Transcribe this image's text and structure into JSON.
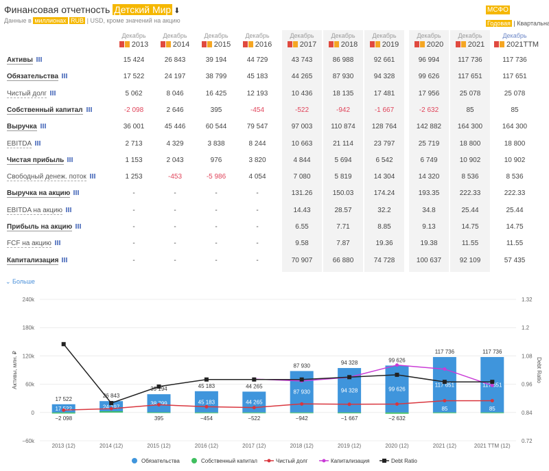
{
  "header": {
    "title_prefix": "Финансовая отчетность",
    "company": "Детский Мир",
    "download_icon": "download-icon",
    "data_in": "Данные в",
    "units": "миллионах",
    "currency_active": "RUB",
    "separator": "|",
    "currency_alt": "USD",
    "units_note": ", кроме значений на акцию",
    "standard": "МСФО",
    "period_active": "Годовая",
    "period_alt": "Квартальная"
  },
  "columns": [
    {
      "month": "Декабрь",
      "year": "2013"
    },
    {
      "month": "Декабрь",
      "year": "2014"
    },
    {
      "month": "Декабрь",
      "year": "2015"
    },
    {
      "month": "Декабрь",
      "year": "2016"
    },
    {
      "month": "Декабрь",
      "year": "2017"
    },
    {
      "month": "Декабрь",
      "year": "2018"
    },
    {
      "month": "Декабрь",
      "year": "2019"
    },
    {
      "month": "Декабрь",
      "year": "2020"
    },
    {
      "month": "Декабрь",
      "year": "2021"
    },
    {
      "month": "Декабрь",
      "year": "2021TTM"
    }
  ],
  "rows": [
    {
      "label": "Активы",
      "bold": true,
      "values": [
        "15 424",
        "26 843",
        "39 194",
        "44 729",
        "43 743",
        "86 988",
        "92 661",
        "96 994",
        "117 736",
        "117 736"
      ]
    },
    {
      "label": "Обязательства",
      "bold": true,
      "values": [
        "17 522",
        "24 197",
        "38 799",
        "45 183",
        "44 265",
        "87 930",
        "94 328",
        "99 626",
        "117 651",
        "117 651"
      ]
    },
    {
      "label": "Чистый долг",
      "bold": false,
      "values": [
        "5 062",
        "8 046",
        "16 425",
        "12 193",
        "10 436",
        "18 135",
        "17 481",
        "17 956",
        "25 078",
        "25 078"
      ]
    },
    {
      "label": "Собственный капитал",
      "bold": true,
      "values": [
        "-2 098",
        "2 646",
        "395",
        "-454",
        "-522",
        "-942",
        "-1 667",
        "-2 632",
        "85",
        "85"
      ]
    },
    {
      "label": "Выручка",
      "bold": true,
      "values": [
        "36 001",
        "45 446",
        "60 544",
        "79 547",
        "97 003",
        "110 874",
        "128 764",
        "142 882",
        "164 300",
        "164 300"
      ]
    },
    {
      "label": "EBITDA",
      "bold": false,
      "values": [
        "2 713",
        "4 329",
        "3 838",
        "8 244",
        "10 663",
        "21 114",
        "23 797",
        "25 719",
        "18 800",
        "18 800"
      ]
    },
    {
      "label": "Чистая прибыль",
      "bold": true,
      "values": [
        "1 153",
        "2 043",
        "976",
        "3 820",
        "4 844",
        "5 694",
        "6 542",
        "6 749",
        "10 902",
        "10 902"
      ]
    },
    {
      "label": "Свободный денеж. поток",
      "bold": false,
      "values": [
        "1 253",
        "-453",
        "-5 986",
        "4 054",
        "7 080",
        "5 819",
        "14 304",
        "14 320",
        "8 536",
        "8 536"
      ]
    },
    {
      "label": "Выручка на акцию",
      "bold": true,
      "values": [
        "-",
        "-",
        "-",
        "-",
        "131.26",
        "150.03",
        "174.24",
        "193.35",
        "222.33",
        "222.33"
      ]
    },
    {
      "label": "EBITDA на акцию",
      "bold": false,
      "values": [
        "-",
        "-",
        "-",
        "-",
        "14.43",
        "28.57",
        "32.2",
        "34.8",
        "25.44",
        "25.44"
      ]
    },
    {
      "label": "Прибыль на акцию",
      "bold": true,
      "values": [
        "-",
        "-",
        "-",
        "-",
        "6.55",
        "7.71",
        "8.85",
        "9.13",
        "14.75",
        "14.75"
      ]
    },
    {
      "label": "FCF на акцию",
      "bold": false,
      "values": [
        "-",
        "-",
        "-",
        "-",
        "9.58",
        "7.87",
        "19.36",
        "19.38",
        "11.55",
        "11.55"
      ]
    },
    {
      "label": "Капитализация",
      "bold": true,
      "values": [
        "-",
        "-",
        "-",
        "-",
        "70 907",
        "66 880",
        "74 728",
        "100 637",
        "92 109",
        "57 435"
      ]
    }
  ],
  "more_label": "⌄ Больше",
  "chart_data": {
    "type": "bar",
    "categories": [
      "2013 (12)",
      "2014 (12)",
      "2015 (12)",
      "2016 (12)",
      "2017 (12)",
      "2018 (12)",
      "2019 (12)",
      "2020 (12)",
      "2021 (12)",
      "2021 TTM (12)"
    ],
    "ylabel": "Активы, млн. ₽",
    "y2label": "Debt Ratio",
    "ylim": [
      -60000,
      240000
    ],
    "y2lim": [
      0.72,
      1.32
    ],
    "yticks": [
      "240k",
      "180k",
      "120k",
      "60k",
      "0",
      "−60k"
    ],
    "y2ticks": [
      "1.32",
      "1.2",
      "1.08",
      "0.96",
      "0.84",
      "0.72"
    ],
    "series": [
      {
        "name": "Обязательства",
        "kind": "bar",
        "color": "#3f95dc",
        "values": [
          17522,
          24197,
          38799,
          45183,
          44265,
          87930,
          94328,
          99626,
          117651,
          117651
        ],
        "labels": [
          "17 522",
          "24 197",
          "38 799",
          "45 183",
          "44 265",
          "87 930",
          "94 328",
          "99 626",
          "117 651",
          "117 651"
        ]
      },
      {
        "name": "Собственный капитал",
        "kind": "bar",
        "color": "#3fbf5f",
        "values": [
          -2098,
          2646,
          395,
          -454,
          -522,
          -942,
          -1667,
          -2632,
          85,
          85
        ],
        "labels": [
          "−2 098",
          "",
          "395",
          "−454",
          "−522",
          "−942",
          "−1 667",
          "−2 632",
          "85",
          "85"
        ]
      },
      {
        "name": "Чистый долг",
        "kind": "line",
        "color": "#d9363e",
        "values": [
          5062,
          8046,
          16425,
          12193,
          10436,
          18135,
          17481,
          17956,
          25078,
          25078
        ]
      },
      {
        "name": "Капитализация",
        "kind": "line",
        "color": "#c93bd6",
        "values": [
          null,
          null,
          null,
          null,
          70907,
          66880,
          74728,
          100637,
          92109,
          57435
        ]
      },
      {
        "name": "Debt Ratio",
        "kind": "line",
        "axis": "right",
        "color": "#222222",
        "values": [
          1.13,
          0.88,
          0.95,
          0.98,
          0.98,
          0.98,
          0.99,
          1.0,
          0.97,
          0.97
        ]
      }
    ],
    "top_labels": [
      "17 522",
      "26 843",
      "39 194",
      "45 183",
      "44 265",
      "87 930",
      "94 328",
      "99 626",
      "117 736",
      "117 736"
    ]
  }
}
